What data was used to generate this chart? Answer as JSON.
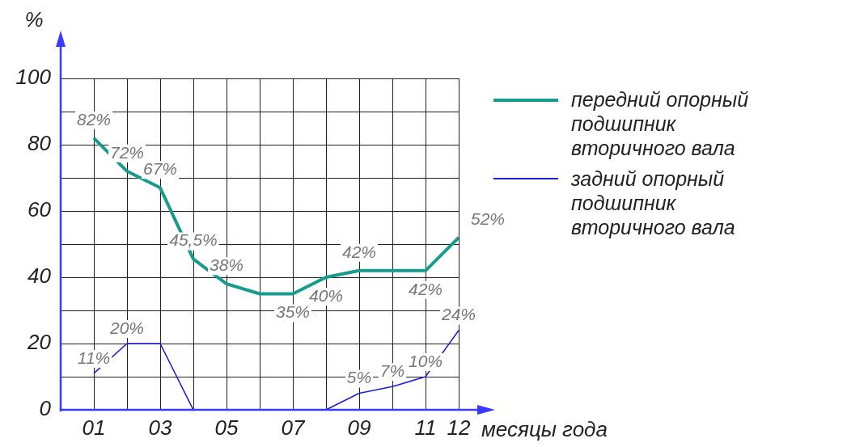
{
  "chart_data": {
    "type": "line",
    "ylabel": "%",
    "xlabel": "месяцы года",
    "x": [
      1,
      2,
      3,
      4,
      5,
      6,
      7,
      8,
      9,
      10,
      11,
      12
    ],
    "xlim": [
      0,
      12
    ],
    "xticks": [
      {
        "value": 1,
        "label": "01"
      },
      {
        "value": 2,
        "label": null
      },
      {
        "value": 3,
        "label": "03"
      },
      {
        "value": 4,
        "label": null
      },
      {
        "value": 5,
        "label": "05"
      },
      {
        "value": 6,
        "label": null
      },
      {
        "value": 7,
        "label": "07"
      },
      {
        "value": 8,
        "label": null
      },
      {
        "value": 9,
        "label": "09"
      },
      {
        "value": 10,
        "label": null
      },
      {
        "value": 11,
        "label": "11"
      },
      {
        "value": 12,
        "label": "12"
      }
    ],
    "ylim": [
      0,
      100
    ],
    "yticks": [
      0,
      {
        "value": 10,
        "label": null
      },
      20,
      {
        "value": 30,
        "label": null
      },
      40,
      {
        "value": 50,
        "label": null
      },
      60,
      {
        "value": 70,
        "label": null
      },
      80,
      {
        "value": 90,
        "label": null
      },
      100
    ],
    "grid": true,
    "legend": "right",
    "marker": "none",
    "line_style": "solid",
    "series": [
      {
        "name": "передний опорный подшипник вторичного вала",
        "color": "#169c8e",
        "values": [
          82,
          72,
          67,
          45.5,
          38,
          35,
          35,
          40,
          42,
          42,
          42,
          52
        ],
        "value_labels": [
          "82%",
          "72%",
          "67%",
          "45,5%",
          "38%",
          null,
          "35%",
          "40%",
          "42%",
          null,
          "42%",
          "52%"
        ]
      },
      {
        "name": "задний опорный подшипник вторичного вала",
        "color": "#1c1ce0",
        "values": [
          11,
          20,
          20,
          0,
          0,
          0,
          0,
          0,
          5,
          7,
          10,
          24
        ],
        "value_labels": [
          "11%",
          "20%",
          null,
          null,
          null,
          null,
          null,
          null,
          "5%",
          "7%",
          "10%",
          "24%"
        ]
      }
    ]
  }
}
